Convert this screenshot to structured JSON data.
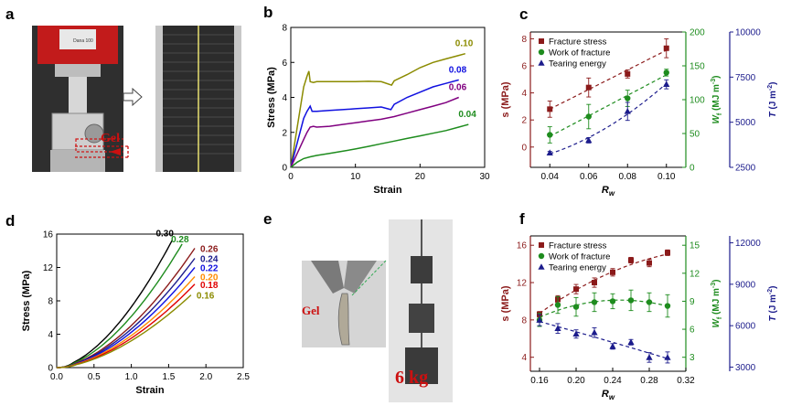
{
  "panels": {
    "a": {
      "letter": "a",
      "gel_label": "Gel",
      "machine_label_lines": [
        "Dana 100"
      ]
    },
    "b": {
      "letter": "b"
    },
    "c": {
      "letter": "c"
    },
    "d": {
      "letter": "d"
    },
    "e": {
      "letter": "e",
      "gel_label": "Gel",
      "weight_label": "6 kg"
    },
    "f": {
      "letter": "f"
    }
  },
  "colors": {
    "dark_red": "#8B1A1A",
    "green": "#1E8C1E",
    "navy": "#1C1C8C",
    "olive": "#8B8B00",
    "blue": "#1010E0",
    "purple": "#800080",
    "black": "#000000",
    "orange": "#FF8C00",
    "red": "#E00000",
    "gel_red": "#CC1010"
  },
  "chart_data": [
    {
      "id": "b",
      "type": "line",
      "xlabel": "Strain",
      "ylabel": "Stress (MPa)",
      "xlim": [
        0,
        30
      ],
      "ylim": [
        0,
        8
      ],
      "xticks": [
        0,
        10,
        20,
        30
      ],
      "yticks": [
        0,
        2,
        4,
        6,
        8
      ],
      "series": [
        {
          "name": "0.10",
          "color": "#8B8B00",
          "x": [
            0,
            2.0,
            2.5,
            2.8,
            3.0,
            3.5,
            4,
            6,
            8,
            10,
            12,
            14,
            15.6,
            16,
            18,
            20,
            22,
            24,
            26,
            27
          ],
          "y": [
            0,
            4.6,
            5.2,
            5.5,
            4.9,
            4.85,
            4.9,
            4.9,
            4.9,
            4.9,
            4.92,
            4.9,
            4.7,
            4.95,
            5.3,
            5.7,
            6.0,
            6.2,
            6.4,
            6.5
          ]
        },
        {
          "name": "0.08",
          "color": "#1010E0",
          "x": [
            0,
            2.0,
            2.5,
            3.0,
            3.3,
            4,
            6,
            8,
            10,
            12,
            14,
            15.5,
            16,
            18,
            20,
            22,
            24,
            26
          ],
          "y": [
            0,
            2.8,
            3.2,
            3.5,
            3.2,
            3.2,
            3.25,
            3.3,
            3.35,
            3.4,
            3.45,
            3.3,
            3.6,
            4.0,
            4.3,
            4.6,
            4.8,
            5.0
          ]
        },
        {
          "name": "0.06",
          "color": "#800080",
          "x": [
            0,
            2.0,
            2.5,
            3.0,
            3.5,
            4,
            6,
            8,
            10,
            12,
            14,
            16,
            18,
            20,
            22,
            24,
            26
          ],
          "y": [
            0,
            1.6,
            2.0,
            2.3,
            2.35,
            2.3,
            2.35,
            2.45,
            2.55,
            2.65,
            2.75,
            2.9,
            3.1,
            3.3,
            3.5,
            3.7,
            4.0
          ]
        },
        {
          "name": "0.04",
          "color": "#1E8C1E",
          "x": [
            0,
            1,
            2,
            3,
            4,
            6,
            8,
            10,
            12,
            14,
            16,
            18,
            20,
            22,
            24,
            26,
            27.5
          ],
          "y": [
            0,
            0.3,
            0.5,
            0.6,
            0.68,
            0.8,
            0.92,
            1.05,
            1.2,
            1.35,
            1.5,
            1.65,
            1.8,
            1.95,
            2.1,
            2.3,
            2.45
          ]
        }
      ]
    },
    {
      "id": "c",
      "type": "scatter",
      "xlabel": "R_w",
      "xlabel_main": "R",
      "xlabel_sub": "w",
      "xlim": [
        0.03,
        0.11
      ],
      "xticks": [
        0.04,
        0.06,
        0.08,
        0.1
      ],
      "xtick_labels": [
        "0.04",
        "0.06",
        "0.08",
        "0.10"
      ],
      "ylabel_left": "s (MPa)",
      "ylim_left": [
        -1.5,
        8.5
      ],
      "yticks_left": [
        0,
        2,
        4,
        6,
        8
      ],
      "ylabel_mid": "W_f (MJ m^-3)",
      "ylabel_mid_main": "W",
      "ylabel_mid_sub": "f",
      "ylabel_mid_rest": " (MJ m",
      "ylabel_mid_sup": "-3",
      "ylim_mid": [
        0,
        200
      ],
      "yticks_mid": [
        0,
        50,
        100,
        150,
        200
      ],
      "ylabel_right": "T (J m^-2)",
      "ylabel_right_main": "T",
      "ylabel_right_rest": " (J m",
      "ylabel_right_sup": "-2",
      "ylim_right": [
        2500,
        10000
      ],
      "yticks_right": [
        2500,
        5000,
        7500,
        10000
      ],
      "series": [
        {
          "name": "Fracture stress",
          "axis": "left",
          "marker": "square",
          "color": "#8B1A1A",
          "x": [
            0.04,
            0.06,
            0.08,
            0.1
          ],
          "y": [
            2.8,
            4.4,
            5.4,
            7.3
          ],
          "err": [
            0.6,
            0.7,
            0.3,
            0.7
          ]
        },
        {
          "name": "Work of fracture",
          "axis": "mid",
          "marker": "circle",
          "color": "#1E8C1E",
          "x": [
            0.04,
            0.06,
            0.08,
            0.1
          ],
          "y": [
            48,
            75,
            102,
            140
          ],
          "err": [
            12,
            18,
            12,
            5
          ]
        },
        {
          "name": "Tearing energy",
          "axis": "right",
          "marker": "triangle",
          "color": "#1C1C8C",
          "x": [
            0.04,
            0.06,
            0.08,
            0.1
          ],
          "y": [
            3300,
            4000,
            5600,
            7100
          ],
          "err": [
            80,
            150,
            500,
            250
          ]
        }
      ]
    },
    {
      "id": "d",
      "type": "line",
      "xlabel": "Strain",
      "ylabel": "Stress (MPa)",
      "xlim": [
        0,
        2.5
      ],
      "ylim": [
        0,
        16
      ],
      "xticks": [
        0,
        0.5,
        1.0,
        1.5,
        2.0,
        2.5
      ],
      "xtick_labels": [
        "0.0",
        "0.5",
        "1.0",
        "1.5",
        "2.0",
        "2.5"
      ],
      "yticks": [
        0,
        4,
        8,
        12,
        16
      ],
      "series": [
        {
          "name": "0.30",
          "color": "#000000",
          "xmax": 1.55,
          "ymax": 15.3
        },
        {
          "name": "0.28",
          "color": "#1E8C1E",
          "xmax": 1.68,
          "ymax": 14.8
        },
        {
          "name": "0.26",
          "color": "#8B1A1A",
          "xmax": 1.85,
          "ymax": 14.3
        },
        {
          "name": "0.24",
          "color": "#1C1C8C",
          "xmax": 1.85,
          "ymax": 13.1
        },
        {
          "name": "0.22",
          "color": "#1010E0",
          "xmax": 1.85,
          "ymax": 12.0
        },
        {
          "name": "0.20",
          "color": "#FF8C00",
          "xmax": 1.85,
          "ymax": 10.9
        },
        {
          "name": "0.18",
          "color": "#E00000",
          "xmax": 1.85,
          "ymax": 10.0
        },
        {
          "name": "0.16",
          "color": "#8B8B00",
          "xmax": 1.8,
          "ymax": 8.7
        }
      ]
    },
    {
      "id": "f",
      "type": "scatter",
      "xlabel": "R_w",
      "xlabel_main": "R",
      "xlabel_sub": "w",
      "xlim": [
        0.15,
        0.32
      ],
      "xticks": [
        0.16,
        0.2,
        0.24,
        0.28,
        0.32
      ],
      "xtick_labels": [
        "0.16",
        "0.20",
        "0.24",
        "0.28",
        "0.32"
      ],
      "ylabel_left": "s (MPa)",
      "ylim_left": [
        2.5,
        17
      ],
      "yticks_left": [
        4,
        8,
        12,
        16
      ],
      "ylabel_mid": "W_f (MJ m^-3)",
      "ylabel_mid_main": "W",
      "ylabel_mid_sub": "f",
      "ylabel_mid_rest": " (MJ m",
      "ylabel_mid_sup": "-3",
      "ylim_mid": [
        1.5,
        16
      ],
      "yticks_mid": [
        3,
        6,
        9,
        12,
        15
      ],
      "ylabel_right": "T (J m^-2)",
      "ylabel_right_main": "T",
      "ylabel_right_rest": " (J m",
      "ylabel_right_sup": "-2",
      "ylim_right": [
        2700,
        12500
      ],
      "yticks_right": [
        3000,
        6000,
        9000,
        12000
      ],
      "series": [
        {
          "name": "Fracture stress",
          "axis": "left",
          "marker": "square",
          "color": "#8B1A1A",
          "x": [
            0.16,
            0.18,
            0.2,
            0.22,
            0.24,
            0.26,
            0.28,
            0.3
          ],
          "y": [
            8.6,
            10.2,
            11.3,
            12.0,
            13.1,
            14.4,
            14.1,
            15.2
          ],
          "err": [
            0.3,
            0.4,
            0.5,
            0.5,
            0.4,
            0.3,
            0.4,
            0.3
          ]
        },
        {
          "name": "Work of fracture",
          "axis": "mid",
          "marker": "circle",
          "color": "#1E8C1E",
          "x": [
            0.16,
            0.18,
            0.2,
            0.22,
            0.24,
            0.26,
            0.28,
            0.3
          ],
          "y": [
            7.0,
            8.6,
            8.4,
            8.9,
            9.0,
            9.1,
            8.9,
            8.5
          ],
          "err": [
            0.7,
            0.9,
            1.0,
            1.0,
            0.8,
            1.1,
            1.0,
            1.2
          ]
        },
        {
          "name": "Tearing energy",
          "axis": "right",
          "marker": "triangle",
          "color": "#1C1C8C",
          "x": [
            0.16,
            0.18,
            0.2,
            0.22,
            0.24,
            0.26,
            0.28,
            0.3
          ],
          "y": [
            6400,
            5800,
            5400,
            5500,
            4500,
            4800,
            3700,
            3700
          ],
          "err": [
            400,
            350,
            300,
            350,
            200,
            200,
            350,
            400
          ]
        }
      ]
    }
  ]
}
